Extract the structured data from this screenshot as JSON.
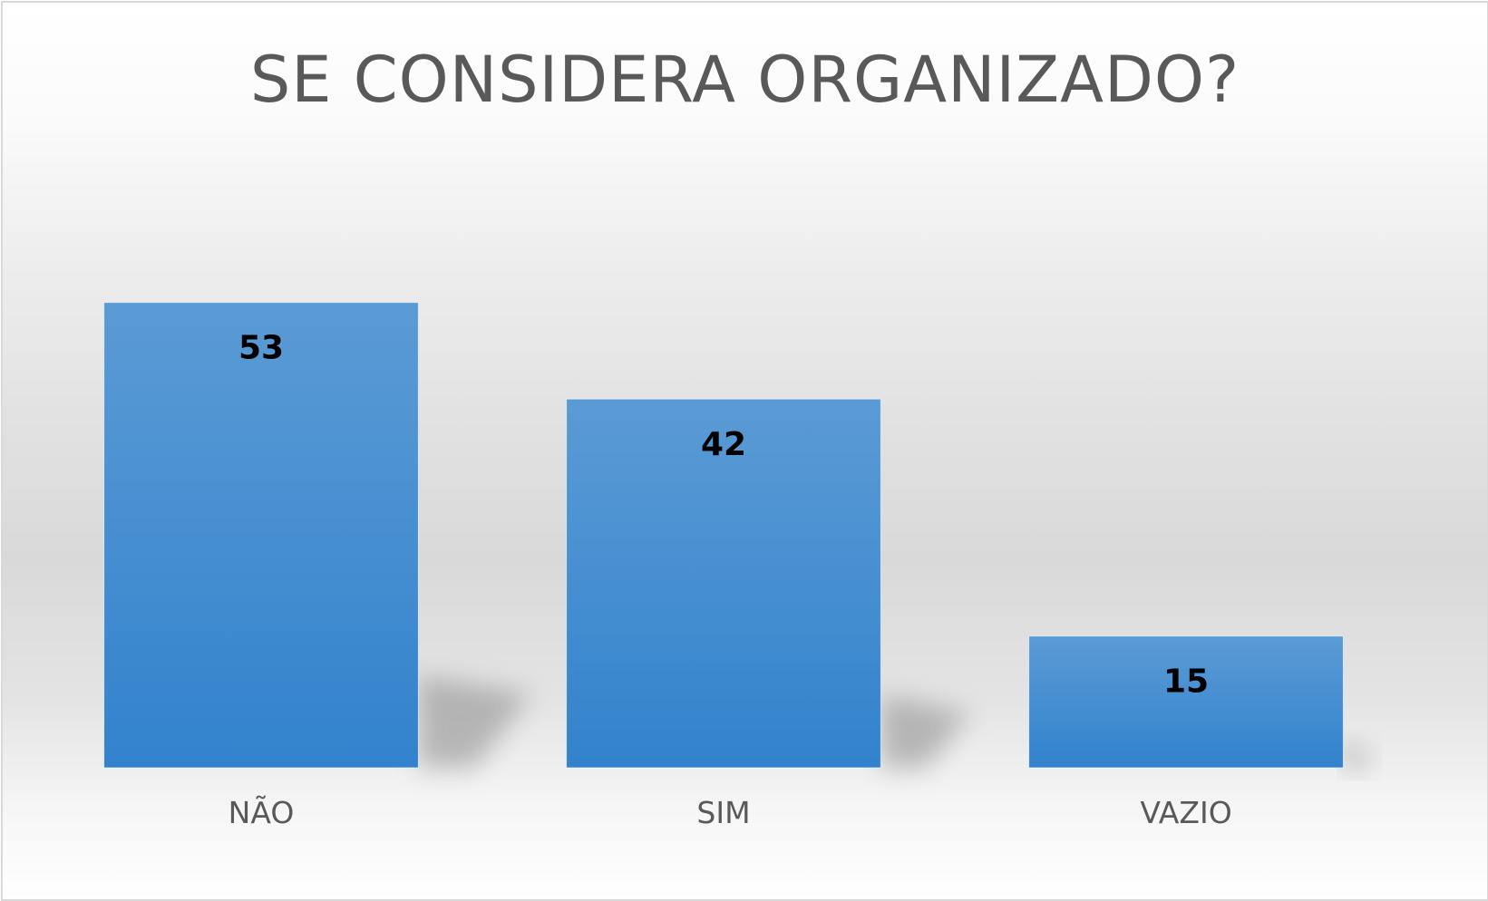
{
  "chart_data": {
    "type": "bar",
    "title": "SE CONSIDERA ORGANIZADO?",
    "categories": [
      "NÃO",
      "SIM",
      "VAZIO"
    ],
    "values": [
      53,
      42,
      15
    ],
    "xlabel": "",
    "ylabel": "",
    "ylim": [
      0,
      70
    ],
    "grid": false,
    "legend": "none",
    "data_labels": [
      "53",
      "42",
      "15"
    ],
    "colors": {
      "bar_top": "#5b9bd5",
      "bar_bottom": "#3282cd",
      "title": "#595959",
      "category_text": "#595959",
      "value_text": "#000000"
    }
  }
}
